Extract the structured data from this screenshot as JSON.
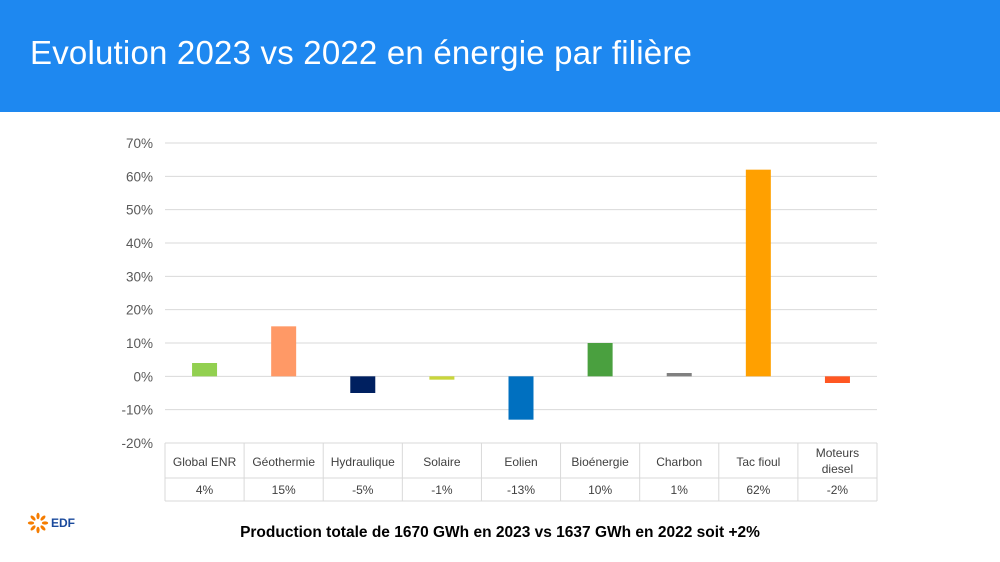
{
  "header": {
    "title": "Evolution 2023 vs 2022 en énergie par filière"
  },
  "chart_data": {
    "type": "bar",
    "categories": [
      "Global ENR",
      "Géothermie",
      "Hydraulique",
      "Solaire",
      "Eolien",
      "Bioénergie",
      "Charbon",
      "Tac fioul",
      "Moteurs diesel"
    ],
    "values": [
      4,
      15,
      -5,
      -1,
      -13,
      10,
      1,
      62,
      -2
    ],
    "table_labels": [
      "4%",
      "15%",
      "-5%",
      "-1%",
      "-13%",
      "10%",
      "1%",
      "62%",
      "-2%"
    ],
    "colors": [
      "#92d050",
      "#ff9966",
      "#002060",
      "#c9d63a",
      "#0070c0",
      "#4aa03f",
      "#808080",
      "#ffa000",
      "#ff5722"
    ],
    "ylim": [
      -20,
      70
    ],
    "yticks": [
      -20,
      -10,
      0,
      10,
      20,
      30,
      40,
      50,
      60,
      70
    ],
    "ytick_labels": [
      "-20%",
      "-10%",
      "0%",
      "10%",
      "20%",
      "30%",
      "40%",
      "50%",
      "60%",
      "70%"
    ],
    "grid": true,
    "data_table": true,
    "title": "",
    "xlabel": "",
    "ylabel": ""
  },
  "footer": {
    "text": "Production totale de 1670 GWh en 2023 vs 1637 GWh en 2022 soit +2%"
  },
  "logo": {
    "text": "EDF",
    "color": "#f57c00"
  }
}
